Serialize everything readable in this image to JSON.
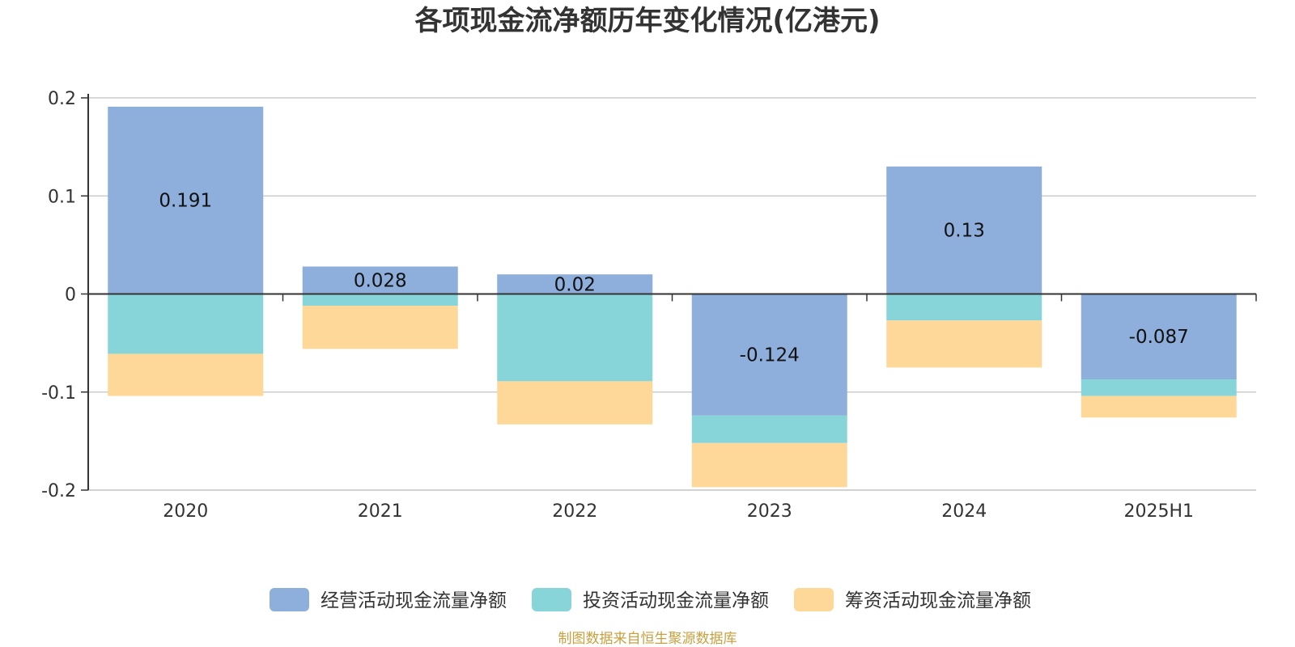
{
  "chart_data": {
    "type": "bar",
    "stacked": true,
    "title": "各项现金流净额历年变化情况(亿港元)",
    "categories": [
      "2020",
      "2021",
      "2022",
      "2023",
      "2024",
      "2025H1"
    ],
    "series": [
      {
        "name": "经营活动现金流量净额",
        "color": "#8eaedb",
        "values": [
          0.191,
          0.028,
          0.02,
          -0.124,
          0.13,
          -0.087
        ],
        "data_labels": [
          "0.191",
          "0.028",
          "0.02",
          "-0.124",
          "0.13",
          "-0.087"
        ]
      },
      {
        "name": "投资活动现金流量净额",
        "color": "#88d5d9",
        "values": [
          -0.061,
          -0.012,
          -0.089,
          -0.028,
          -0.027,
          -0.017
        ]
      },
      {
        "name": "筹资活动现金流量净额",
        "color": "#fed899",
        "values": [
          -0.043,
          -0.044,
          -0.044,
          -0.045,
          -0.048,
          -0.022
        ]
      }
    ],
    "ylim": [
      -0.2,
      0.2
    ],
    "yticks": [
      -0.2,
      -0.1,
      0,
      0.1,
      0.2
    ],
    "ytick_labels": [
      "-0.2",
      "-0.1",
      "0",
      "0.1",
      "0.2"
    ],
    "grid": true,
    "legend_position": "bottom-center"
  },
  "source": {
    "text": "制图数据来自恒生聚源数据库",
    "color": "#c8a040"
  }
}
